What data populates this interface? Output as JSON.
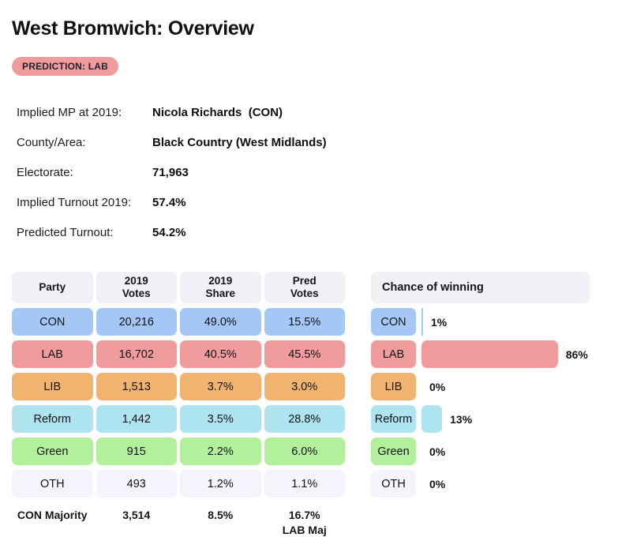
{
  "page": {
    "title": "West Bromwich: Overview",
    "prediction_badge": "PREDICTION: LAB"
  },
  "colors": {
    "badge": "#f09c9c",
    "header_bg": "#f1f1f5"
  },
  "details": [
    {
      "label": "Implied MP at 2019:",
      "value": "Nicola Richards  (CON)"
    },
    {
      "label": "County/Area:",
      "value": "Black Country (West Midlands)"
    },
    {
      "label": "Electorate:",
      "value": "71,963"
    },
    {
      "label": "Implied Turnout 2019:",
      "value": "57.4%"
    },
    {
      "label": "Predicted Turnout:",
      "value": "54.2%"
    }
  ],
  "results_table": {
    "headers": [
      "Party",
      "2019\nVotes",
      "2019\nShare",
      "Pred\nVotes"
    ],
    "rows": [
      {
        "party": "CON",
        "votes_2019": "20,216",
        "share_2019": "49.0%",
        "pred_votes": "15.5%",
        "color": "#a4c7f6"
      },
      {
        "party": "LAB",
        "votes_2019": "16,702",
        "share_2019": "40.5%",
        "pred_votes": "45.5%",
        "color": "#f09c9c"
      },
      {
        "party": "LIB",
        "votes_2019": "1,513",
        "share_2019": "3.7%",
        "pred_votes": "3.0%",
        "color": "#f1b370"
      },
      {
        "party": "Reform",
        "votes_2019": "1,442",
        "share_2019": "3.5%",
        "pred_votes": "28.8%",
        "color": "#aee4f0"
      },
      {
        "party": "Green",
        "votes_2019": "915",
        "share_2019": "2.2%",
        "pred_votes": "6.0%",
        "color": "#b2f09c"
      },
      {
        "party": "OTH",
        "votes_2019": "493",
        "share_2019": "1.2%",
        "pred_votes": "1.1%",
        "color": "#f6f3fc"
      }
    ],
    "footer": {
      "label": "CON Majority",
      "votes": "3,514",
      "share": "8.5%",
      "pred": "16.7%\nLAB Maj"
    }
  },
  "chance_of_winning": {
    "title": "Chance of winning",
    "rows": [
      {
        "party": "CON",
        "percent": 1,
        "label": "1%",
        "color": "#a4c7f6"
      },
      {
        "party": "LAB",
        "percent": 86,
        "label": "86%",
        "color": "#f09c9c"
      },
      {
        "party": "LIB",
        "percent": 0,
        "label": "0%",
        "color": "#f1b370"
      },
      {
        "party": "Reform",
        "percent": 13,
        "label": "13%",
        "color": "#aee4f0"
      },
      {
        "party": "Green",
        "percent": 0,
        "label": "0%",
        "color": "#b2f09c"
      },
      {
        "party": "OTH",
        "percent": 0,
        "label": "0%",
        "color": "#f6f3fc"
      }
    ]
  },
  "chart_data": {
    "type": "bar",
    "title": "Chance of winning",
    "categories": [
      "CON",
      "LAB",
      "LIB",
      "Reform",
      "Green",
      "OTH"
    ],
    "values": [
      1,
      86,
      0,
      13,
      0,
      0
    ],
    "xlabel": "",
    "ylabel": "Chance of winning (%)",
    "xlim": [
      0,
      100
    ],
    "orientation": "horizontal",
    "grid": false,
    "legend": false
  }
}
